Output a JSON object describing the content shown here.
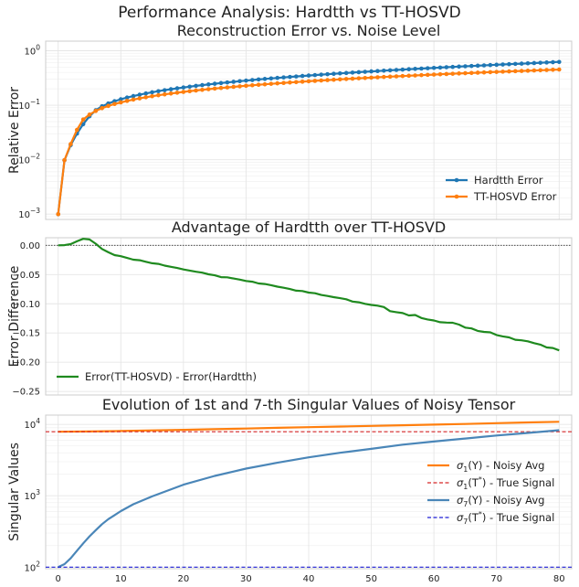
{
  "suptitle": "Performance Analysis: Hardtth vs TT-HOSVD",
  "colors": {
    "blue": "#1f77b4",
    "orange": "#ff7f0e",
    "green": "#1f8a1f",
    "red": "#d62728",
    "navy": "#1f1fd6",
    "steel": "#4a86b8",
    "grid": "#e6e6e6",
    "frame": "#cccccc"
  },
  "chart_data": [
    {
      "type": "line",
      "title": "Reconstruction Error vs. Noise Level",
      "xlabel": "",
      "ylabel": "Relative Error",
      "yscale": "log",
      "xlim": [
        -2,
        82
      ],
      "ylim": [
        0.0008,
        1.5
      ],
      "yticks": [
        {
          "v": 0.001,
          "base": "10",
          "exp": "−3"
        },
        {
          "v": 0.01,
          "base": "10",
          "exp": "−2"
        },
        {
          "v": 0.1,
          "base": "10",
          "exp": "−1"
        },
        {
          "v": 1,
          "base": "10",
          "exp": "0"
        }
      ],
      "legend_position": "lower-right",
      "legend": [
        "Hardtth Error",
        "TT-HOSVD Error"
      ],
      "series": [
        {
          "name": "Hardtth Error",
          "x": [
            0,
            1,
            2,
            3,
            4,
            5,
            6,
            7,
            8,
            9,
            10,
            11,
            12,
            13,
            14,
            15,
            16,
            17,
            18,
            19,
            20,
            21,
            22,
            23,
            24,
            25,
            26,
            27,
            28,
            29,
            30,
            31,
            32,
            33,
            34,
            35,
            36,
            37,
            38,
            39,
            40,
            41,
            42,
            43,
            44,
            45,
            46,
            47,
            48,
            49,
            50,
            51,
            52,
            53,
            54,
            55,
            56,
            57,
            58,
            59,
            60,
            61,
            62,
            63,
            64,
            65,
            66,
            67,
            68,
            69,
            70,
            71,
            72,
            73,
            74,
            75,
            76,
            77,
            78,
            79,
            80
          ],
          "y": [
            0.001,
            0.00975,
            0.01854,
            0.03018,
            0.04488,
            0.06263,
            0.08088,
            0.09573,
            0.1076,
            0.1183,
            0.1284,
            0.138,
            0.1471,
            0.1559,
            0.1644,
            0.1727,
            0.1808,
            0.1887,
            0.1965,
            0.2041,
            0.2117,
            0.2191,
            0.2264,
            0.2337,
            0.2409,
            0.248,
            0.2551,
            0.2621,
            0.2691,
            0.2761,
            0.283,
            0.2898,
            0.2967,
            0.3035,
            0.3103,
            0.317,
            0.3238,
            0.3305,
            0.3372,
            0.3439,
            0.3506,
            0.3573,
            0.364,
            0.3707,
            0.3773,
            0.384,
            0.3906,
            0.3973,
            0.404,
            0.4106,
            0.4173,
            0.4239,
            0.4306,
            0.4373,
            0.444,
            0.4506,
            0.4573,
            0.464,
            0.4707,
            0.4775,
            0.4842,
            0.4909,
            0.4977,
            0.5045,
            0.5113,
            0.5181,
            0.5249,
            0.5318,
            0.5386,
            0.5455,
            0.5524,
            0.5594,
            0.5663,
            0.5733,
            0.5803,
            0.5873,
            0.5943,
            0.6014,
            0.6085,
            0.6156,
            0.6227
          ]
        },
        {
          "name": "TT-HOSVD Error",
          "x": [
            0,
            1,
            2,
            3,
            4,
            5,
            6,
            7,
            8,
            9,
            10,
            11,
            12,
            13,
            14,
            15,
            16,
            17,
            18,
            19,
            20,
            21,
            22,
            23,
            24,
            25,
            26,
            27,
            28,
            29,
            30,
            31,
            32,
            33,
            34,
            35,
            36,
            37,
            38,
            39,
            40,
            41,
            42,
            43,
            44,
            45,
            46,
            47,
            48,
            49,
            50,
            51,
            52,
            53,
            54,
            55,
            56,
            57,
            58,
            59,
            60,
            61,
            62,
            63,
            64,
            65,
            66,
            67,
            68,
            69,
            70,
            71,
            72,
            73,
            74,
            75,
            76,
            77,
            78,
            79,
            80
          ],
          "y": [
            0.001,
            0.00982,
            0.01939,
            0.03527,
            0.05475,
            0.06729,
            0.07852,
            0.08829,
            0.0971,
            0.1052,
            0.1128,
            0.12,
            0.1269,
            0.1336,
            0.14,
            0.1462,
            0.1523,
            0.1582,
            0.164,
            0.1697,
            0.1753,
            0.1808,
            0.1862,
            0.1916,
            0.1969,
            0.2021,
            0.2072,
            0.2124,
            0.2174,
            0.2224,
            0.2274,
            0.2323,
            0.2372,
            0.2421,
            0.2469,
            0.2517,
            0.2565,
            0.2612,
            0.2659,
            0.2706,
            0.2753,
            0.2799,
            0.2845,
            0.2891,
            0.2937,
            0.2983,
            0.3029,
            0.3074,
            0.3119,
            0.3164,
            0.3209,
            0.3254,
            0.3299,
            0.3343,
            0.3388,
            0.3432,
            0.3476,
            0.352,
            0.3564,
            0.3608,
            0.3652,
            0.3696,
            0.3739,
            0.3783,
            0.3827,
            0.387,
            0.3913,
            0.3957,
            0.4,
            0.4043,
            0.4087,
            0.413,
            0.4173,
            0.4216,
            0.4259,
            0.4302,
            0.4345,
            0.4388,
            0.4431,
            0.4474,
            0.4517
          ]
        }
      ]
    },
    {
      "type": "line",
      "title": "Advantage of Hardtth over TT-HOSVD",
      "xlabel": "",
      "ylabel": "Error Difference",
      "xlim": [
        -2,
        82
      ],
      "ylim": [
        -0.256,
        0.013
      ],
      "yticks": [
        {
          "v": 0.0,
          "label": "0.00"
        },
        {
          "v": -0.05,
          "label": "−0.05"
        },
        {
          "v": -0.1,
          "label": "−0.10"
        },
        {
          "v": -0.15,
          "label": "−0.15"
        },
        {
          "v": -0.2,
          "label": "−0.20"
        },
        {
          "v": -0.25,
          "label": "−0.25"
        }
      ],
      "reference_line_y": 0,
      "legend_position": "lower-left",
      "legend": [
        "Error(TT-HOSVD) - Error(Hardtth)"
      ],
      "series": [
        {
          "name": "Error(TT-HOSVD) - Error(Hardtth)",
          "x": [
            0,
            1,
            2,
            3,
            4,
            5,
            6,
            7,
            8,
            9,
            10,
            11,
            12,
            13,
            14,
            15,
            16,
            17,
            18,
            19,
            20,
            21,
            22,
            23,
            24,
            25,
            26,
            27,
            28,
            29,
            30,
            31,
            32,
            33,
            34,
            35,
            36,
            37,
            38,
            39,
            40,
            41,
            42,
            43,
            44,
            45,
            46,
            47,
            48,
            49,
            50,
            51,
            52,
            53,
            54,
            55,
            56,
            57,
            58,
            59,
            60,
            61,
            62,
            63,
            64,
            65,
            66,
            67,
            68,
            69,
            70,
            71,
            72,
            73,
            74,
            75,
            76,
            77,
            78,
            79,
            80
          ],
          "y": [
            0.0,
            0.0004,
            0.002,
            0.0069,
            0.0112,
            0.0101,
            0.0027,
            -0.0062,
            -0.0118,
            -0.0167,
            -0.0186,
            -0.0216,
            -0.0246,
            -0.0255,
            -0.0281,
            -0.0306,
            -0.0317,
            -0.0347,
            -0.0367,
            -0.0388,
            -0.0412,
            -0.0432,
            -0.0452,
            -0.0468,
            -0.0495,
            -0.0513,
            -0.0544,
            -0.0547,
            -0.0567,
            -0.0586,
            -0.061,
            -0.0622,
            -0.0652,
            -0.0662,
            -0.0682,
            -0.0706,
            -0.0725,
            -0.0748,
            -0.0775,
            -0.0782,
            -0.0809,
            -0.082,
            -0.0849,
            -0.0866,
            -0.0887,
            -0.0904,
            -0.0922,
            -0.0962,
            -0.0974,
            -0.1,
            -0.102,
            -0.1032,
            -0.1055,
            -0.1126,
            -0.1143,
            -0.1159,
            -0.12,
            -0.1191,
            -0.1243,
            -0.1268,
            -0.1286,
            -0.1315,
            -0.1322,
            -0.1324,
            -0.1355,
            -0.1407,
            -0.1421,
            -0.1463,
            -0.1481,
            -0.1489,
            -0.1534,
            -0.1557,
            -0.1575,
            -0.1616,
            -0.1625,
            -0.1642,
            -0.1674,
            -0.1698,
            -0.1746,
            -0.1756,
            -0.1797
          ]
        }
      ]
    },
    {
      "type": "line",
      "title": "Evolution of 1st and 7-th Singular Values of Noisy Tensor",
      "xlabel": "",
      "ylabel": "Singular Values",
      "yscale": "log",
      "xlim": [
        -2,
        82
      ],
      "ylim": [
        95,
        13500
      ],
      "xticks": [
        0,
        10,
        20,
        30,
        40,
        50,
        60,
        70,
        80
      ],
      "yticks": [
        {
          "v": 100,
          "base": "10",
          "exp": "2"
        },
        {
          "v": 1000,
          "base": "10",
          "exp": "3"
        },
        {
          "v": 10000,
          "base": "10",
          "exp": "4"
        }
      ],
      "legend_position": "center-right",
      "series": [
        {
          "name": "σ1(Y) - Noisy Avg",
          "label_sym": "σ",
          "label_sub": "1",
          "label_arg": "(Y)",
          "label_sup": "",
          "label_tail": " - Noisy Avg",
          "x": [
            0,
            5,
            10,
            15,
            20,
            25,
            30,
            35,
            40,
            45,
            50,
            55,
            60,
            65,
            70,
            75,
            80
          ],
          "y": [
            7900,
            7950,
            8080,
            8250,
            8400,
            8570,
            8760,
            8970,
            9150,
            9330,
            9530,
            9730,
            9940,
            10150,
            10400,
            10650,
            10900
          ]
        },
        {
          "name": "σ1(T*) - True Signal",
          "label_sym": "σ",
          "label_sub": "1",
          "label_arg": "(T",
          "label_sup": "*",
          "label_tail": ") - True Signal",
          "x": [
            -2,
            82
          ],
          "y": [
            7900,
            7900
          ]
        },
        {
          "name": "σ7(Y) - Noisy Avg",
          "label_sym": "σ",
          "label_sub": "7",
          "label_arg": "(Y)",
          "label_sup": "",
          "label_tail": " - Noisy Avg",
          "x": [
            0,
            1,
            2,
            3,
            4,
            5,
            6,
            7,
            8,
            10,
            12,
            15,
            20,
            25,
            30,
            35,
            40,
            45,
            50,
            55,
            60,
            65,
            70,
            75,
            80
          ],
          "y": [
            100,
            110,
            133,
            170,
            215,
            270,
            330,
            400,
            470,
            610,
            760,
            980,
            1430,
            1900,
            2400,
            2900,
            3450,
            4000,
            4550,
            5200,
            5750,
            6350,
            7000,
            7600,
            8300
          ]
        },
        {
          "name": "σ7(T*) - True Signal",
          "label_sym": "σ",
          "label_sub": "7",
          "label_arg": "(T",
          "label_sup": "*",
          "label_tail": ") - True Signal",
          "x": [
            -2,
            82
          ],
          "y": [
            100,
            100
          ]
        }
      ]
    }
  ]
}
